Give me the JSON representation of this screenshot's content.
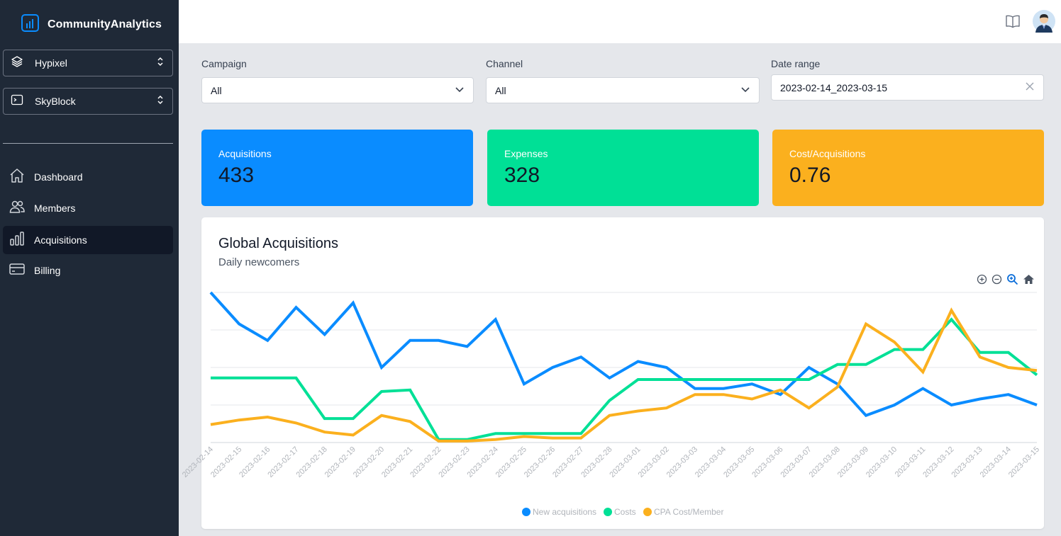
{
  "brand": {
    "name": "CommunityAnalytics"
  },
  "selectors": [
    {
      "label": "Hypixel",
      "icon": "layers-icon"
    },
    {
      "label": "SkyBlock",
      "icon": "terminal-icon"
    }
  ],
  "nav": [
    {
      "label": "Dashboard",
      "icon": "home-icon"
    },
    {
      "label": "Members",
      "icon": "users-icon"
    },
    {
      "label": "Acquisitions",
      "icon": "bar-chart-icon",
      "active": true
    },
    {
      "label": "Billing",
      "icon": "credit-card-icon"
    }
  ],
  "filters": {
    "campaign": {
      "label": "Campaign",
      "value": "All"
    },
    "channel": {
      "label": "Channel",
      "value": "All"
    },
    "date_range": {
      "label": "Date range",
      "value": "2023-02-14_2023-03-15"
    }
  },
  "stats": [
    {
      "label": "Acquisitions",
      "value": "433",
      "color": "#0a8cff"
    },
    {
      "label": "Expenses",
      "value": "328",
      "color": "#00e096"
    },
    {
      "label": "Cost/Acquisitions",
      "value": "0.76",
      "color": "#fbb01e"
    }
  ],
  "chart_panel": {
    "title": "Global Acquisitions",
    "subtitle": "Daily newcomers"
  },
  "chart_data": {
    "type": "line",
    "title": "Global Acquisitions",
    "subtitle": "Daily newcomers",
    "x": [
      "2023-02-14",
      "2023-02-15",
      "2023-02-16",
      "2023-02-17",
      "2023-02-18",
      "2023-02-19",
      "2023-02-20",
      "2023-02-21",
      "2023-02-22",
      "2023-02-23",
      "2023-02-24",
      "2023-02-25",
      "2023-02-26",
      "2023-02-27",
      "2023-02-28",
      "2023-03-01",
      "2023-03-02",
      "2023-03-03",
      "2023-03-04",
      "2023-03-05",
      "2023-03-06",
      "2023-03-07",
      "2023-03-08",
      "2023-03-09",
      "2023-03-10",
      "2023-03-11",
      "2023-03-12",
      "2023-03-13",
      "2023-03-14",
      "2023-03-15"
    ],
    "ylim": [
      0,
      1
    ],
    "grid": true,
    "legend": "bottom-center",
    "series": [
      {
        "name": "New acquisitions",
        "color": "#0a8cff",
        "values": [
          1.0,
          0.79,
          0.68,
          0.9,
          0.72,
          0.93,
          0.5,
          0.68,
          0.68,
          0.64,
          0.82,
          0.39,
          0.5,
          0.57,
          0.43,
          0.54,
          0.5,
          0.36,
          0.36,
          0.39,
          0.32,
          0.5,
          0.39,
          0.18,
          0.25,
          0.36,
          0.25,
          0.29,
          0.32,
          0.25
        ]
      },
      {
        "name": "Costs",
        "color": "#00e096",
        "values": [
          0.43,
          0.43,
          0.43,
          0.43,
          0.16,
          0.16,
          0.34,
          0.35,
          0.02,
          0.02,
          0.06,
          0.06,
          0.06,
          0.06,
          0.28,
          0.42,
          0.42,
          0.42,
          0.42,
          0.42,
          0.42,
          0.42,
          0.52,
          0.52,
          0.62,
          0.62,
          0.82,
          0.6,
          0.6,
          0.45
        ]
      },
      {
        "name": "CPA Cost/Member",
        "color": "#fbb01e",
        "values": [
          0.12,
          0.15,
          0.17,
          0.13,
          0.07,
          0.05,
          0.18,
          0.14,
          0.01,
          0.01,
          0.02,
          0.04,
          0.03,
          0.03,
          0.18,
          0.21,
          0.23,
          0.32,
          0.32,
          0.29,
          0.35,
          0.23,
          0.37,
          0.79,
          0.67,
          0.47,
          0.88,
          0.57,
          0.5,
          0.48
        ]
      }
    ]
  }
}
